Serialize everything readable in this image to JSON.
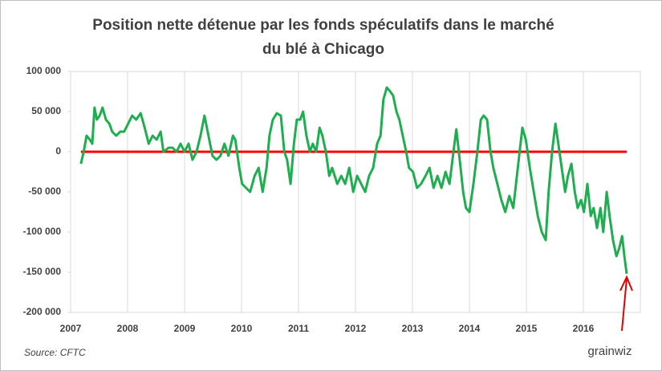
{
  "chart_data": {
    "type": "line",
    "title": [
      "Position  nette détenue par les fonds spéculatifs dans le marché",
      "du blé à Chicago"
    ],
    "source": "Source: CFTC",
    "logo": "grainwiz",
    "xlim": [
      2007,
      2017
    ],
    "xticks": [
      2007,
      2008,
      2009,
      2010,
      2011,
      2012,
      2013,
      2014,
      2015,
      2016
    ],
    "ylim": [
      -200000,
      100000
    ],
    "yticks": [
      {
        "value": -200000,
        "label": "-200 000"
      },
      {
        "value": -150000,
        "label": "-150 000"
      },
      {
        "value": -100000,
        "label": "-100 000"
      },
      {
        "value": -50000,
        "label": "-50 000"
      },
      0,
      {
        "value": 50000,
        "label": "50 000"
      },
      {
        "value": 100000,
        "label": "100 000"
      }
    ],
    "grid": true,
    "reference_line": {
      "y": 0,
      "color": "#ff0000"
    },
    "series": [
      {
        "color": "#1fae4f",
        "x": [
          2007.18,
          2007.23,
          2007.28,
          2007.34,
          2007.38,
          2007.42,
          2007.46,
          2007.51,
          2007.56,
          2007.62,
          2007.68,
          2007.73,
          2007.8,
          2007.87,
          2007.94,
          2008.01,
          2008.08,
          2008.15,
          2008.23,
          2008.3,
          2008.37,
          2008.44,
          2008.51,
          2008.58,
          2008.63,
          2008.72,
          2008.79,
          2008.86,
          2008.93,
          2009.0,
          2009.07,
          2009.14,
          2009.21,
          2009.28,
          2009.35,
          2009.42,
          2009.49,
          2009.56,
          2009.63,
          2009.7,
          2009.77,
          2009.85,
          2009.89,
          2009.96,
          2010.01,
          2010.08,
          2010.15,
          2010.23,
          2010.3,
          2010.37,
          2010.44,
          2010.49,
          2010.55,
          2010.62,
          2010.69,
          2010.75,
          2010.8,
          2010.86,
          2010.92,
          2010.97,
          2011.03,
          2011.08,
          2011.14,
          2011.2,
          2011.25,
          2011.31,
          2011.37,
          2011.42,
          2011.48,
          2011.54,
          2011.59,
          2011.68,
          2011.75,
          2011.82,
          2011.89,
          2011.96,
          2012.03,
          2012.1,
          2012.17,
          2012.24,
          2012.31,
          2012.38,
          2012.44,
          2012.49,
          2012.55,
          2012.61,
          2012.66,
          2012.72,
          2012.77,
          2012.83,
          2012.89,
          2012.94,
          2013.01,
          2013.08,
          2013.15,
          2013.23,
          2013.3,
          2013.37,
          2013.44,
          2013.51,
          2013.58,
          2013.65,
          2013.72,
          2013.77,
          2013.83,
          2013.89,
          2013.94,
          2014.0,
          2014.07,
          2014.14,
          2014.2,
          2014.25,
          2014.31,
          2014.37,
          2014.42,
          2014.49,
          2014.56,
          2014.63,
          2014.7,
          2014.77,
          2014.85,
          2014.93,
          2014.99,
          2015.06,
          2015.13,
          2015.2,
          2015.27,
          2015.34,
          2015.39,
          2015.45,
          2015.51,
          2015.56,
          2015.62,
          2015.68,
          2015.73,
          2015.79,
          2015.85,
          2015.9,
          2015.96,
          2016.01,
          2016.07,
          2016.13,
          2016.18,
          2016.24,
          2016.3,
          2016.35,
          2016.41,
          2016.46,
          2016.52,
          2016.58,
          2016.63,
          2016.68,
          2016.72,
          2016.76
        ],
        "values": [
          -15000,
          0,
          20000,
          15000,
          10000,
          55000,
          40000,
          45000,
          55000,
          40000,
          35000,
          25000,
          20000,
          25000,
          25000,
          35000,
          45000,
          40000,
          48000,
          30000,
          10000,
          20000,
          15000,
          25000,
          0,
          5000,
          5000,
          0,
          10000,
          0,
          10000,
          -10000,
          0,
          20000,
          45000,
          20000,
          -5000,
          -10000,
          -5000,
          10000,
          -5000,
          20000,
          15000,
          -20000,
          -40000,
          -45000,
          -50000,
          -30000,
          -20000,
          -50000,
          -20000,
          20000,
          40000,
          48000,
          45000,
          0,
          -10000,
          -40000,
          10000,
          40000,
          40000,
          50000,
          20000,
          0,
          10000,
          0,
          30000,
          20000,
          0,
          -30000,
          -20000,
          -40000,
          -30000,
          -40000,
          -20000,
          -50000,
          -30000,
          -40000,
          -50000,
          -30000,
          -20000,
          10000,
          20000,
          65000,
          80000,
          75000,
          70000,
          50000,
          40000,
          20000,
          0,
          -20000,
          -25000,
          -45000,
          -40000,
          -30000,
          -20000,
          -45000,
          -30000,
          -45000,
          -25000,
          -40000,
          0,
          28000,
          -10000,
          -50000,
          -70000,
          -75000,
          -40000,
          0,
          40000,
          45000,
          40000,
          0,
          -20000,
          -40000,
          -60000,
          -75000,
          -55000,
          -70000,
          -20000,
          30000,
          15000,
          -20000,
          -50000,
          -80000,
          -100000,
          -110000,
          -50000,
          0,
          35000,
          10000,
          -20000,
          -50000,
          -30000,
          -15000,
          -50000,
          -70000,
          -60000,
          -75000,
          -40000,
          -80000,
          -70000,
          -95000,
          -70000,
          -100000,
          -50000,
          -80000,
          -110000,
          -130000,
          -120000,
          -105000,
          -130000,
          -152000
        ]
      }
    ]
  }
}
